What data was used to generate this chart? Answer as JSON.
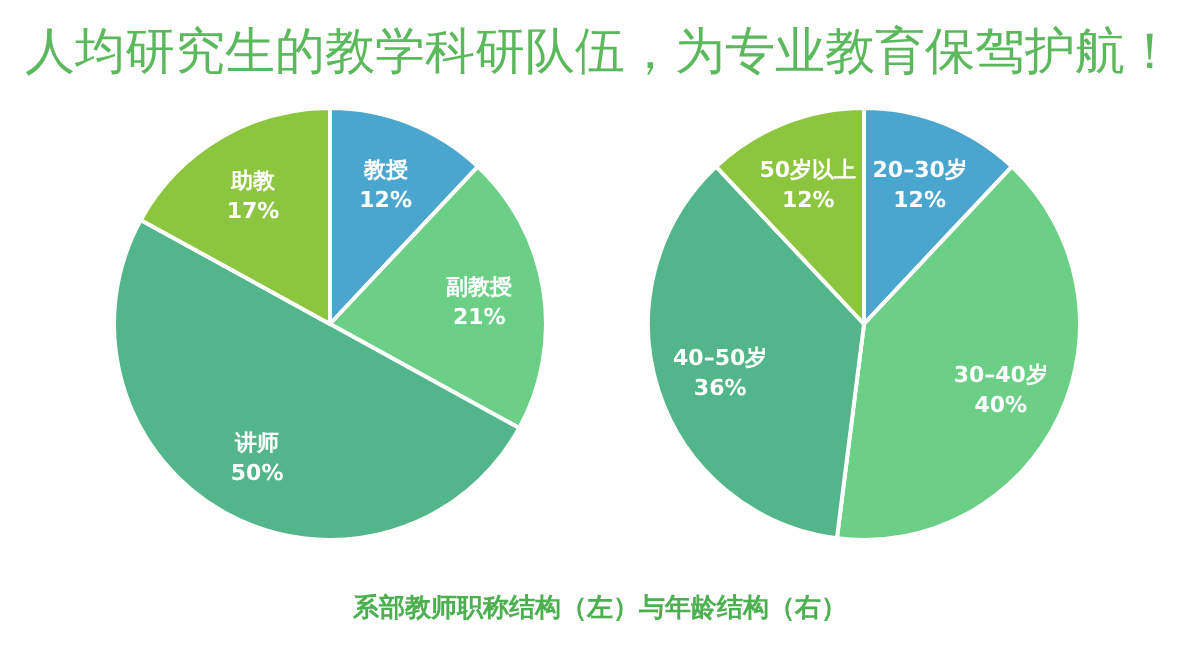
{
  "chart_data": [
    {
      "type": "pie",
      "title": "人均研究生的教学科研队伍，为专业教育保驾护航！",
      "categories": [
        "教授",
        "副教授",
        "讲师",
        "助教"
      ],
      "values": [
        12,
        21,
        50,
        17
      ],
      "colors": [
        "#4aa6cf",
        "#6ccf86",
        "#52b68a",
        "#8cc63e"
      ],
      "value_labels": [
        "12%",
        "21%",
        "50%",
        "17%"
      ]
    },
    {
      "type": "pie",
      "categories": [
        "20–30岁",
        "30–40岁",
        "40–50岁",
        "50岁以上"
      ],
      "values": [
        12,
        40,
        36,
        12
      ],
      "colors": [
        "#4aa6cf",
        "#6ccf86",
        "#52b68a",
        "#8cc63e"
      ],
      "value_labels": [
        "12%",
        "40%",
        "36%",
        "12%"
      ],
      "annotations": [
        "系部教师职称结构（左）与年龄结构（右）"
      ]
    }
  ]
}
